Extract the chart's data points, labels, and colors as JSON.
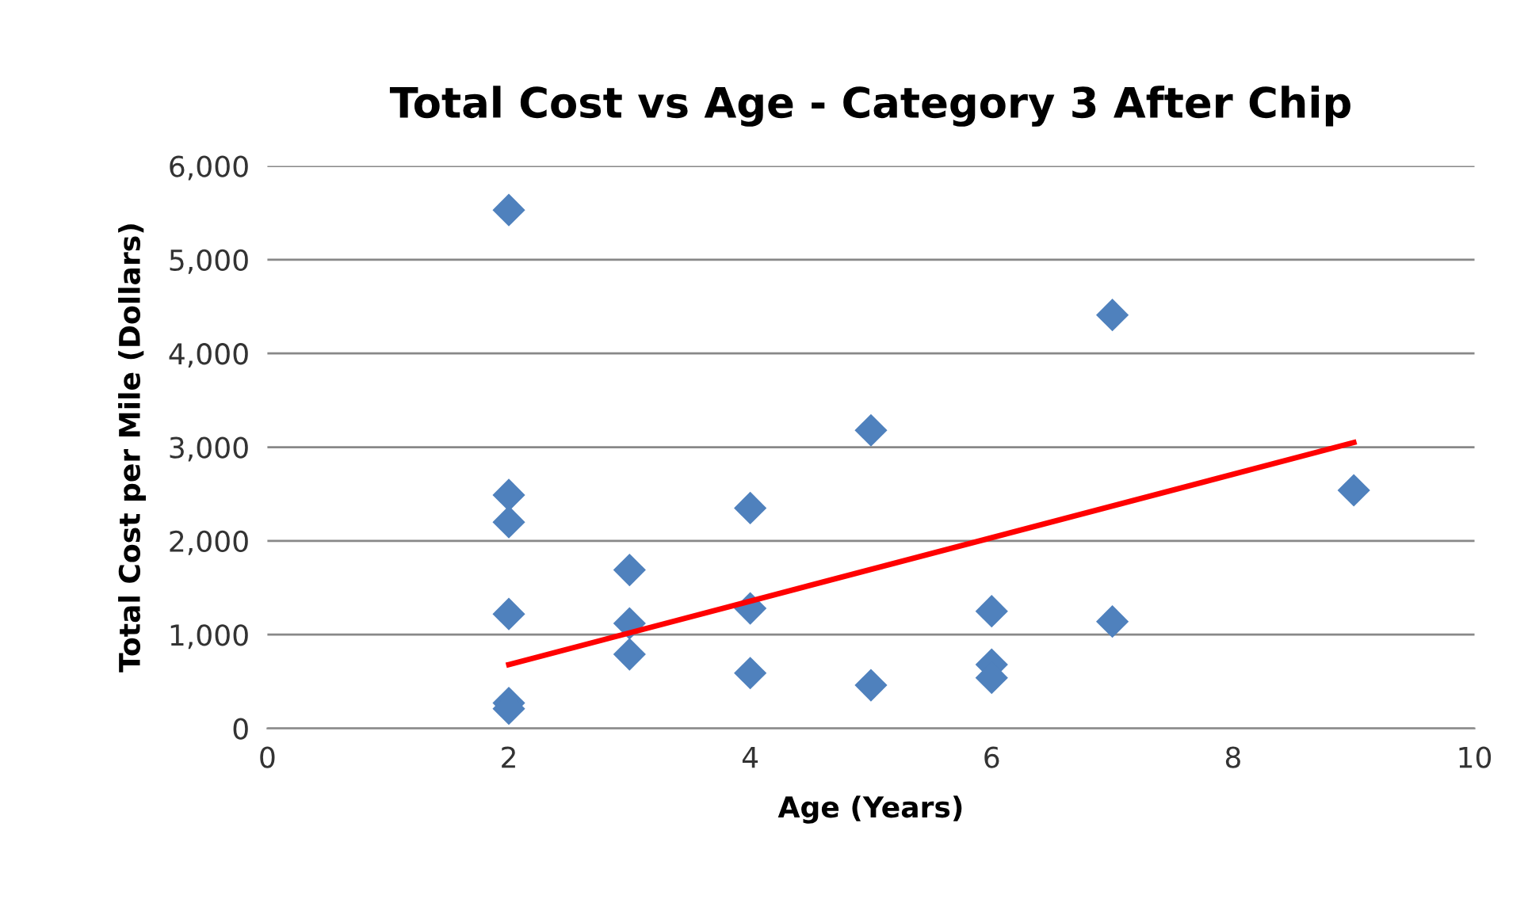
{
  "chart_data": {
    "type": "scatter",
    "title": "Total Cost vs Age - Category 3 After Chip",
    "xlabel": "Age (Years)",
    "ylabel": "Total Cost per Mile (Dollars)",
    "xlim": [
      0,
      10
    ],
    "xticks": [
      0,
      2,
      4,
      6,
      8,
      10
    ],
    "ylim": [
      0,
      6000
    ],
    "yticks": [
      {
        "value": 0,
        "label": "0"
      },
      {
        "value": 1000,
        "label": "1,000"
      },
      {
        "value": 2000,
        "label": "2,000"
      },
      {
        "value": 3000,
        "label": "3,000"
      },
      {
        "value": 4000,
        "label": "4,000"
      },
      {
        "value": 5000,
        "label": "5,000"
      },
      {
        "value": 6000,
        "label": "6,000"
      }
    ],
    "grid": "y",
    "legend": false,
    "marker": "diamond",
    "series": [
      {
        "color": "#4f81bd",
        "x": [
          2,
          2,
          2,
          2,
          2,
          2,
          3,
          3,
          3,
          4,
          4,
          4,
          5,
          5,
          6,
          6,
          6,
          7,
          7,
          9
        ],
        "values": [
          5530,
          2490,
          2200,
          1220,
          270,
          210,
          1690,
          1120,
          790,
          2350,
          1280,
          590,
          3180,
          460,
          1250,
          680,
          540,
          4410,
          1140,
          2540
        ]
      },
      {
        "type": "line",
        "color": "#ff0000",
        "marker": "none",
        "line_style": "solid",
        "x": [
          2,
          9
        ],
        "values": [
          680,
          3050
        ]
      }
    ]
  }
}
